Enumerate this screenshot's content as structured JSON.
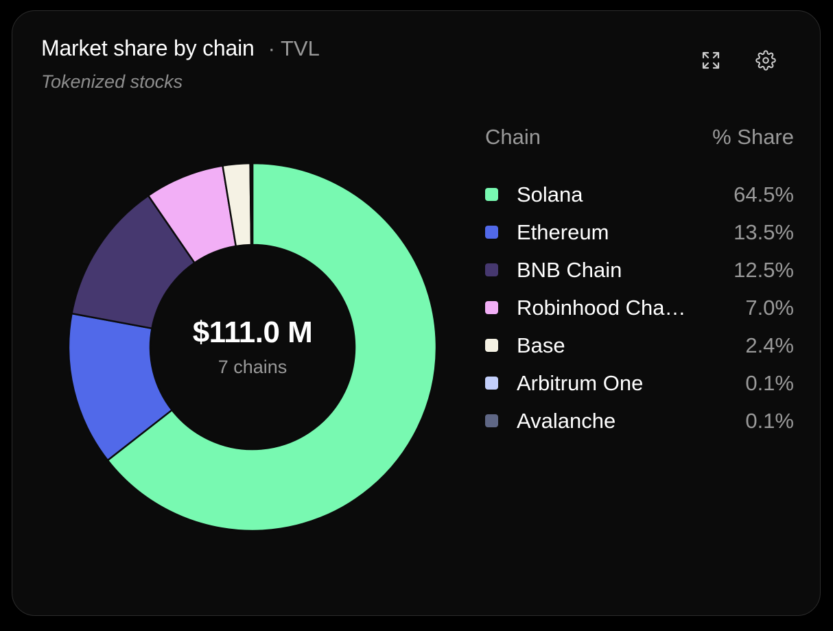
{
  "card": {
    "title": "Market share by chain",
    "metric": "· TVL",
    "subtitle": "Tokenized stocks"
  },
  "icons": {
    "expand": "expand-icon",
    "settings": "gear-icon"
  },
  "center": {
    "value": "$111.0 M",
    "label": "7 chains"
  },
  "legend": {
    "header_chain": "Chain",
    "header_share": "% Share",
    "items": [
      {
        "label": "Solana",
        "value": "64.5%",
        "color": "#78f9b1"
      },
      {
        "label": "Ethereum",
        "value": "13.5%",
        "color": "#5169e9"
      },
      {
        "label": "BNB Chain",
        "value": "12.5%",
        "color": "#46386f"
      },
      {
        "label": "Robinhood Cha…",
        "value": "7.0%",
        "color": "#f2aff6"
      },
      {
        "label": "Base",
        "value": "2.4%",
        "color": "#f5f2e4"
      },
      {
        "label": "Arbitrum One",
        "value": "0.1%",
        "color": "#c3cffb"
      },
      {
        "label": "Avalanche",
        "value": "0.1%",
        "color": "#5f6785"
      }
    ]
  },
  "chart_data": {
    "type": "pie",
    "title": "Market share by chain",
    "subtitle": "Tokenized stocks",
    "center_value": "$111.0 M",
    "categories": [
      "Solana",
      "Ethereum",
      "BNB Chain",
      "Robinhood Cha…",
      "Base",
      "Arbitrum One",
      "Avalanche"
    ],
    "values": [
      64.5,
      13.5,
      12.5,
      7.0,
      2.4,
      0.1,
      0.1
    ],
    "colors": [
      "#78f9b1",
      "#5169e9",
      "#46386f",
      "#f2aff6",
      "#f5f2e4",
      "#c3cffb",
      "#5f6785"
    ],
    "donut": true,
    "legend_position": "right"
  }
}
